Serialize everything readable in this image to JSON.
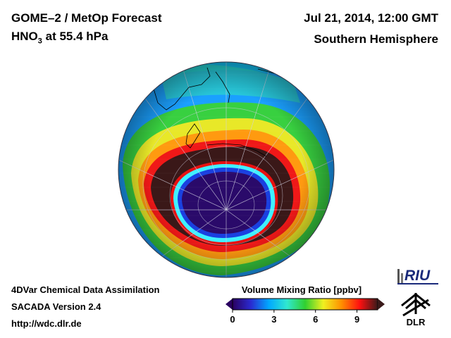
{
  "header": {
    "title": "GOME–2 / MetOp Forecast",
    "species": "HNO",
    "species_sub": "3",
    "level": " at 55.4 hPa",
    "datetime": "Jul 21, 2014, 12:00 GMT",
    "region": "Southern Hemisphere"
  },
  "footer": {
    "line1": "4DVar Chemical Data Assimilation",
    "line2": "SACADA Version 2.4",
    "line3": "http://wdc.dlr.de"
  },
  "colorbar": {
    "title": "Volume Mixing Ratio [ppbv]",
    "ticks": [
      "0",
      "3",
      "6",
      "9"
    ],
    "tick_values": [
      0,
      3,
      6,
      9
    ],
    "range": [
      0,
      10.5
    ],
    "colors": [
      "#2a0060",
      "#2a2ad0",
      "#00a8ff",
      "#30e8d0",
      "#30d030",
      "#f0f020",
      "#ff9000",
      "#ff1010",
      "#3a1a1a"
    ]
  },
  "logos": {
    "riu": "RIU",
    "dlr": "DLR"
  }
}
